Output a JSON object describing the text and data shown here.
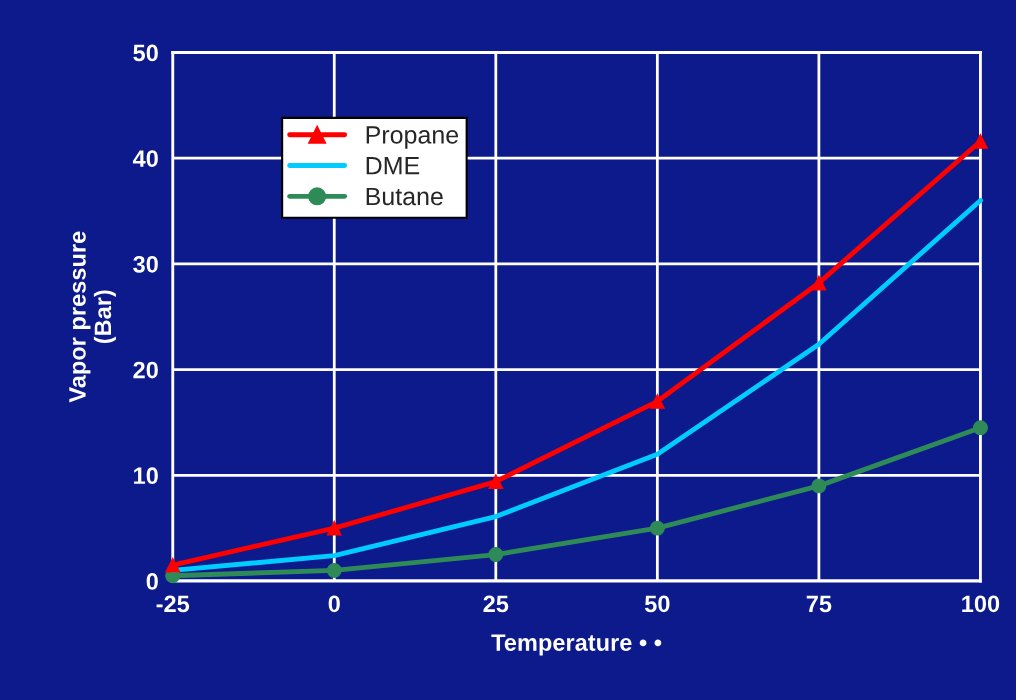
{
  "chart_data": {
    "type": "line",
    "xlabel": "Temperature • •",
    "ylabel": "Vapor pressure\n(Bar)",
    "x": [
      -25,
      0,
      25,
      50,
      75,
      100
    ],
    "series": [
      {
        "name": "Propane",
        "color": "#ff0000",
        "marker": "triangle",
        "values": [
          1.5,
          5,
          9.4,
          17,
          28.2,
          41.6
        ]
      },
      {
        "name": "DME",
        "color": "#00ccff",
        "marker": "none",
        "values": [
          1,
          2.4,
          6.1,
          12,
          22.4,
          36
        ]
      },
      {
        "name": "Butane",
        "color": "#2e8b57",
        "marker": "circle",
        "values": [
          0.5,
          1,
          2.5,
          5,
          9,
          14.5
        ]
      }
    ],
    "xlim": [
      -25,
      100
    ],
    "xticks": [
      -25,
      0,
      25,
      50,
      75,
      100
    ],
    "ylim": [
      0,
      50
    ],
    "yticks": [
      0,
      10,
      20,
      30,
      40,
      50
    ],
    "grid": true,
    "legend": "top left"
  }
}
